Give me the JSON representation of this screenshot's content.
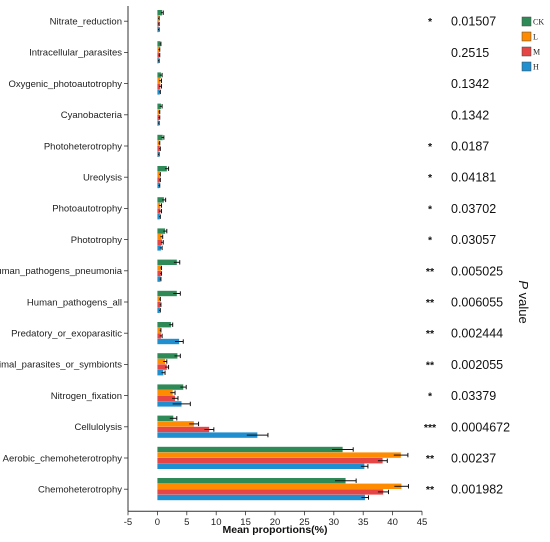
{
  "chart_data": {
    "type": "bar",
    "orientation": "horizontal",
    "xlabel": "Mean proportions(%)",
    "right_axis_label_italic": "P",
    "right_axis_label": " value",
    "xlim": [
      -5,
      45
    ],
    "xticks": [
      "-5",
      "0",
      "5",
      "10",
      "15",
      "20",
      "25",
      "30",
      "35",
      "40",
      "45"
    ],
    "legend_placement": "top-right",
    "categories": [
      "Nitrate_reduction",
      "Intracellular_parasites",
      "Oxygenic_photoautotrophy",
      "Cyanobacteria",
      "Photoheterotrophy",
      "Ureolysis",
      "Photoautotrophy",
      "Phototrophy",
      "Human_pathogens_pneumonia",
      "Human_pathogens_all",
      "Predatory_or_exoparasitic",
      "Animal_parasites_or_symbionts",
      "Nitrogen_fixation",
      "Cellulolysis",
      "Aerobic_chemoheterotrophy",
      "Chemoheterotrophy"
    ],
    "series": [
      {
        "name": "CK",
        "color": "#2e8b57",
        "values": [
          0.8,
          0.5,
          0.6,
          0.6,
          0.9,
          1.6,
          1.1,
          1.3,
          3.3,
          3.3,
          2.3,
          3.4,
          4.4,
          2.7,
          31.5,
          32.0
        ],
        "errors": [
          0.2,
          0.1,
          0.2,
          0.2,
          0.2,
          0.3,
          0.3,
          0.3,
          0.5,
          0.6,
          0.3,
          0.5,
          0.5,
          0.6,
          1.8,
          1.8
        ]
      },
      {
        "name": "L",
        "color": "#ff8c00",
        "values": [
          0.2,
          0.3,
          0.5,
          0.3,
          0.3,
          0.4,
          0.5,
          0.7,
          0.6,
          0.4,
          0.5,
          1.3,
          2.6,
          6.2,
          41.4,
          41.5
        ],
        "errors": [
          0.1,
          0.1,
          0.2,
          0.1,
          0.1,
          0.1,
          0.2,
          0.2,
          0.1,
          0.1,
          0.1,
          0.3,
          0.4,
          0.8,
          1.2,
          1.2
        ]
      },
      {
        "name": "M",
        "color": "#e64545",
        "values": [
          0.2,
          0.3,
          0.5,
          0.3,
          0.4,
          0.4,
          0.5,
          0.8,
          0.6,
          0.5,
          0.6,
          1.6,
          3.0,
          8.8,
          38.3,
          38.4
        ],
        "errors": [
          0.1,
          0.1,
          0.2,
          0.1,
          0.1,
          0.1,
          0.2,
          0.2,
          0.1,
          0.1,
          0.2,
          0.3,
          0.5,
          0.8,
          0.8,
          0.9
        ]
      },
      {
        "name": "H",
        "color": "#1f8fd0",
        "values": [
          0.2,
          0.2,
          0.4,
          0.2,
          0.2,
          0.3,
          0.4,
          0.6,
          0.5,
          0.4,
          3.7,
          1.0,
          4.1,
          17.0,
          35.2,
          35.3
        ],
        "errors": [
          0.1,
          0.1,
          0.1,
          0.1,
          0.1,
          0.1,
          0.1,
          0.2,
          0.1,
          0.1,
          0.7,
          0.3,
          1.5,
          1.8,
          0.6,
          0.6
        ]
      }
    ],
    "significance": [
      "*",
      "",
      "",
      "",
      "*",
      "*",
      "*",
      "*",
      "**",
      "**",
      "**",
      "**",
      "*",
      "***",
      "**",
      "**"
    ],
    "p_values": [
      "0.01507",
      "0.2515",
      "0.1342",
      "0.1342",
      "0.0187",
      "0.04181",
      "0.03702",
      "0.03057",
      "0.005025",
      "0.006055",
      "0.002444",
      "0.002055",
      "0.03379",
      "0.0004672",
      "0.00237",
      "0.001982"
    ]
  }
}
